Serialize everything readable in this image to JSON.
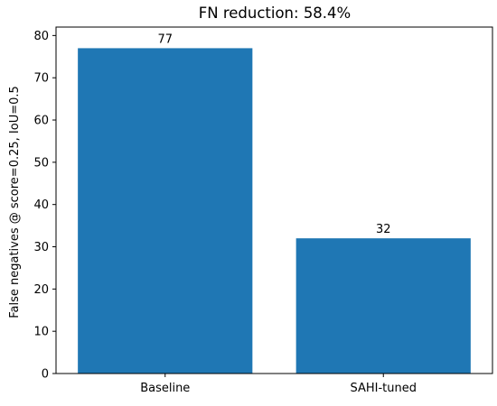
{
  "chart_data": {
    "type": "bar",
    "title": "FN reduction: 58.4%",
    "xlabel": "",
    "ylabel": "False negatives @ score=0.25, IoU=0.5",
    "categories": [
      "Baseline",
      "SAHI-tuned"
    ],
    "values": [
      77,
      32
    ],
    "data_labels": [
      "77",
      "32"
    ],
    "ylim": [
      0,
      82
    ],
    "yticks": [
      0,
      10,
      20,
      30,
      40,
      50,
      60,
      70,
      80
    ],
    "bar_color": "#1f77b4",
    "grid": false,
    "legend": "none"
  }
}
